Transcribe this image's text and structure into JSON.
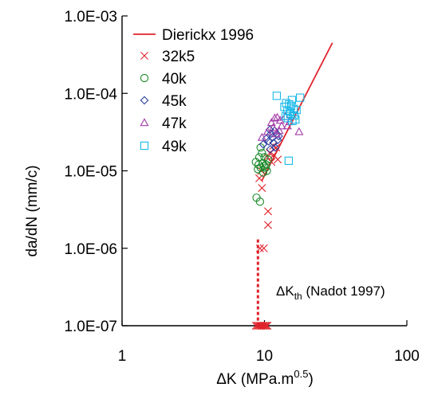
{
  "chart_data": {
    "type": "scatter",
    "xlabel": "ΔK (MPa.m0.5)",
    "xlabel_main": "ΔK (MPa.m",
    "xlabel_sup": "0.5",
    "xlabel_close": ")",
    "ylabel": "da/dN (mm/c)",
    "x_scale": "log",
    "y_scale": "log",
    "xlim": [
      1,
      100
    ],
    "ylim": [
      1e-07,
      0.001
    ],
    "x_ticks": [
      {
        "value": 1,
        "label": "1"
      },
      {
        "value": 10,
        "label": "10"
      },
      {
        "value": 100,
        "label": "100"
      }
    ],
    "y_ticks": [
      {
        "value": 1e-07,
        "label": "1.0E-07"
      },
      {
        "value": 1e-06,
        "label": "1.0E-06"
      },
      {
        "value": 1e-05,
        "label": "1.0E-05"
      },
      {
        "value": 0.0001,
        "label": "1.0E-04"
      },
      {
        "value": 0.001,
        "label": "1.0E-03"
      }
    ],
    "grid": false,
    "legend_position": "top-left",
    "series": [
      {
        "name": "Dierickx 1996",
        "kind": "line",
        "color": "#e0222b",
        "points": [
          [
            9.6,
            7.5e-06
          ],
          [
            30,
            0.00045
          ]
        ]
      },
      {
        "name": "32k5",
        "marker": "x",
        "color": "#e0222b",
        "points": [
          [
            8.7,
            1e-07
          ],
          [
            8.9,
            1e-07
          ],
          [
            9.1,
            1e-07
          ],
          [
            9.3,
            1e-07
          ],
          [
            9.5,
            1e-07
          ],
          [
            9.7,
            1e-07
          ],
          [
            9.9,
            1e-07
          ],
          [
            10.1,
            1e-07
          ],
          [
            10.3,
            1e-07
          ],
          [
            10.5,
            1e-07
          ],
          [
            9.3,
            1e-06
          ],
          [
            9.9,
            1e-06
          ],
          [
            10.6,
            3e-06
          ],
          [
            10.6,
            2e-06
          ],
          [
            9.6,
            6e-06
          ],
          [
            9.2,
            8e-06
          ],
          [
            9.5,
            1e-05
          ],
          [
            10.5,
            1.5e-05
          ],
          [
            11.2,
            1.3e-05
          ],
          [
            11.6,
            1.6e-05
          ],
          [
            12.1,
            2e-05
          ],
          [
            10.9,
            1.7e-05
          ],
          [
            11.5,
            2.1e-05
          ],
          [
            12.4,
            1.4e-05
          ]
        ]
      },
      {
        "name": "40k",
        "marker": "circle",
        "color": "#1a8a2a",
        "points": [
          [
            8.8,
            4.5e-06
          ],
          [
            9.3,
            4e-06
          ],
          [
            8.7,
            1.3e-05
          ],
          [
            9.1,
            1.2e-05
          ],
          [
            9.4,
            1.1e-05
          ],
          [
            9.7,
            1.25e-05
          ],
          [
            9.9,
            1.15e-05
          ],
          [
            10.2,
            1.1e-05
          ],
          [
            9.2,
            1.5e-05
          ],
          [
            9.6,
            1.7e-05
          ],
          [
            9.4,
            2e-05
          ],
          [
            10.0,
            1.5e-05
          ],
          [
            10.3,
            1.2e-05
          ],
          [
            9.0,
            1.05e-05
          ],
          [
            10.6,
            1.4e-05
          ],
          [
            9.8,
            9.5e-06
          ],
          [
            10.4,
            1e-05
          ]
        ]
      },
      {
        "name": "45k",
        "marker": "diamond",
        "color": "#2b3fa0",
        "points": [
          [
            9.8,
            2.2e-05
          ],
          [
            10.3,
            2.6e-05
          ],
          [
            10.7,
            2.4e-05
          ],
          [
            11.1,
            3e-05
          ],
          [
            11.4,
            2.7e-05
          ],
          [
            11.8,
            3.3e-05
          ],
          [
            12.2,
            3e-05
          ],
          [
            12.6,
            2.8e-05
          ],
          [
            11.6,
            2.3e-05
          ],
          [
            10.9,
            3.4e-05
          ],
          [
            12.4,
            2.5e-05
          ],
          [
            11.0,
            1.9e-05
          ],
          [
            11.9,
            2e-05
          ]
        ]
      },
      {
        "name": "47k",
        "marker": "triangle",
        "color": "#a23aa8",
        "points": [
          [
            9.6,
            2.7e-05
          ],
          [
            10.5,
            3.2e-05
          ],
          [
            11.2,
            4.2e-05
          ],
          [
            11.8,
            4.8e-05
          ],
          [
            12.3,
            4.9e-05
          ],
          [
            12.9,
            4.5e-05
          ],
          [
            11.5,
            3.6e-05
          ],
          [
            12.7,
            3.3e-05
          ],
          [
            14.0,
            5e-05
          ],
          [
            15.0,
            4.3e-05
          ],
          [
            17.5,
            3.2e-05
          ],
          [
            13.2,
            3.8e-05
          ],
          [
            12.1,
            3e-05
          ],
          [
            14.5,
            3.8e-05
          ]
        ]
      },
      {
        "name": "49k",
        "marker": "square",
        "color": "#19b8e8",
        "points": [
          [
            12.2,
            9.3e-05
          ],
          [
            14.2,
            7.5e-05
          ],
          [
            14.9,
            7.2e-05
          ],
          [
            15.6,
            8.2e-05
          ],
          [
            16.2,
            5.2e-05
          ],
          [
            17.8,
            8.8e-05
          ],
          [
            14.5,
            6e-05
          ],
          [
            15.2,
            5.4e-05
          ],
          [
            16.0,
            6.3e-05
          ],
          [
            14.6,
            4.8e-05
          ],
          [
            15.7,
            4.4e-05
          ],
          [
            16.8,
            6.1e-05
          ],
          [
            13.8,
            6.7e-05
          ],
          [
            14.8,
            1.35e-05
          ],
          [
            15.4,
            6.9e-05
          ],
          [
            16.5,
            4.6e-05
          ],
          [
            15.1,
            5.8e-05
          ],
          [
            14.1,
            5.1e-05
          ]
        ]
      }
    ],
    "annotation": {
      "text_main": "ΔK",
      "text_sub": "th",
      "text_rest": " (Nadot 1997)",
      "line_x": 9.0,
      "line_from": 1e-07,
      "line_to": 1.3e-06,
      "color": "#e0222b"
    }
  }
}
